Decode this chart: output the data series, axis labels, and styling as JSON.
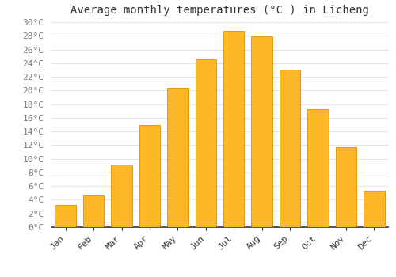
{
  "title": "Average monthly temperatures (°C ) in Licheng",
  "months": [
    "Jan",
    "Feb",
    "Mar",
    "Apr",
    "May",
    "Jun",
    "Jul",
    "Aug",
    "Sep",
    "Oct",
    "Nov",
    "Dec"
  ],
  "values": [
    3.2,
    4.6,
    9.2,
    15.0,
    20.4,
    24.6,
    28.7,
    27.9,
    23.1,
    17.3,
    11.7,
    5.3
  ],
  "bar_color": "#FDB827",
  "bar_edge_color": "#E8960A",
  "background_color": "#FFFFFF",
  "grid_color": "#DDDDDD",
  "text_color": "#777777",
  "ylim": [
    0,
    30
  ],
  "ytick_step": 2,
  "title_fontsize": 10,
  "tick_fontsize": 8,
  "font_family": "monospace"
}
